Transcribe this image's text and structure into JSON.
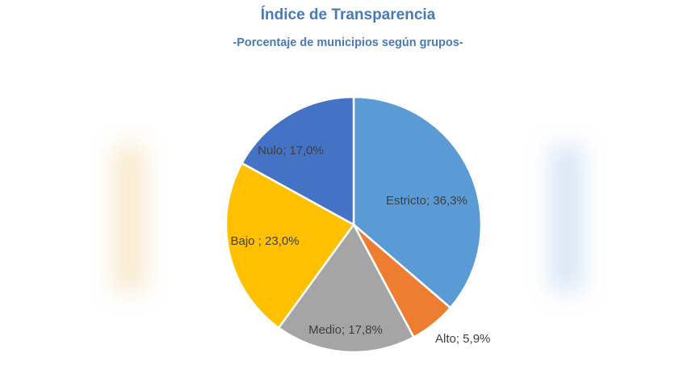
{
  "chart_data": {
    "type": "pie",
    "title": "Índice de Transparencia",
    "subtitle": "-Porcentaje de municipios según grupos-",
    "legend": "none",
    "slices": [
      {
        "name": "Estricto",
        "value": 36.3,
        "label": "Estricto; 36,3%",
        "color": "#5b9bd5"
      },
      {
        "name": "Alto",
        "value": 5.9,
        "label": "Alto; 5,9%",
        "color": "#ed7d31"
      },
      {
        "name": "Medio",
        "value": 17.8,
        "label": "Medio; 17,8%",
        "color": "#a5a5a5"
      },
      {
        "name": "Bajo",
        "value": 23.0,
        "label": "Bajo ; 23,0%",
        "color": "#ffc000"
      },
      {
        "name": "Nulo",
        "value": 17.0,
        "label": "Nulo; 17,0%",
        "color": "#4472c4"
      }
    ]
  }
}
